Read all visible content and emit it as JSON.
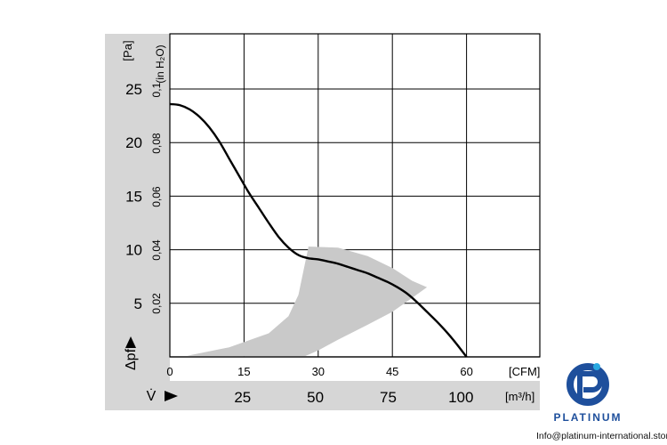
{
  "chart_data": {
    "type": "line",
    "title": "",
    "xlabel": "V̇",
    "ylabel": "Δpf",
    "x_primary": {
      "unit": "[CFM]",
      "ticks": [
        "0",
        "15",
        "30",
        "45",
        "60"
      ],
      "range": [
        0,
        75
      ]
    },
    "x_secondary": {
      "symbol": "V̇",
      "unit": "[m³/h]",
      "ticks": [
        "25",
        "50",
        "75",
        "100"
      ]
    },
    "y_primary": {
      "symbol": "Δpf",
      "unit": "[Pa]",
      "ticks": [
        "5",
        "10",
        "15",
        "20",
        "25"
      ],
      "range": [
        0,
        25
      ]
    },
    "y_secondary": {
      "unit": "(in H₂O)",
      "ticks": [
        "0,02",
        "0,04",
        "0,06",
        "0,08",
        "0,1"
      ]
    },
    "grid": true,
    "series": [
      {
        "x": [
          0,
          2,
          4,
          6,
          8,
          10,
          12,
          14,
          16,
          18,
          20,
          22,
          24,
          26,
          28,
          30,
          32,
          34,
          36,
          38,
          40,
          42,
          44,
          46,
          48,
          50,
          52,
          54,
          56,
          58,
          60
        ],
        "y": [
          23.6,
          23.5,
          23.1,
          22.4,
          21.4,
          20.1,
          18.5,
          16.9,
          15.3,
          13.9,
          12.5,
          11.2,
          10.2,
          9.5,
          9.2,
          9.1,
          8.9,
          8.7,
          8.4,
          8.1,
          7.8,
          7.4,
          7.0,
          6.5,
          5.9,
          5.1,
          4.2,
          3.3,
          2.3,
          1.2,
          0.0
        ]
      }
    ],
    "operating_region": {
      "upper": [
        [
          3.5,
          0.1
        ],
        [
          12,
          0.9
        ],
        [
          20,
          2.2
        ],
        [
          24,
          3.8
        ],
        [
          26,
          5.8
        ],
        [
          27,
          8.0
        ],
        [
          28,
          10.2
        ]
      ],
      "outer": [
        [
          28,
          10.3
        ],
        [
          34,
          10.2
        ],
        [
          40,
          9.4
        ],
        [
          45,
          8.3
        ],
        [
          49,
          7.1
        ],
        [
          52,
          6.5
        ]
      ],
      "lower": [
        [
          52,
          6.5
        ],
        [
          49,
          5.5
        ],
        [
          45,
          4.2
        ],
        [
          40,
          3.0
        ],
        [
          34,
          1.6
        ],
        [
          30,
          0.6
        ],
        [
          27,
          0.0
        ]
      ]
    }
  },
  "branding": {
    "logo_text": "PLATINUM",
    "contact": "Info@platinum-international.store"
  }
}
